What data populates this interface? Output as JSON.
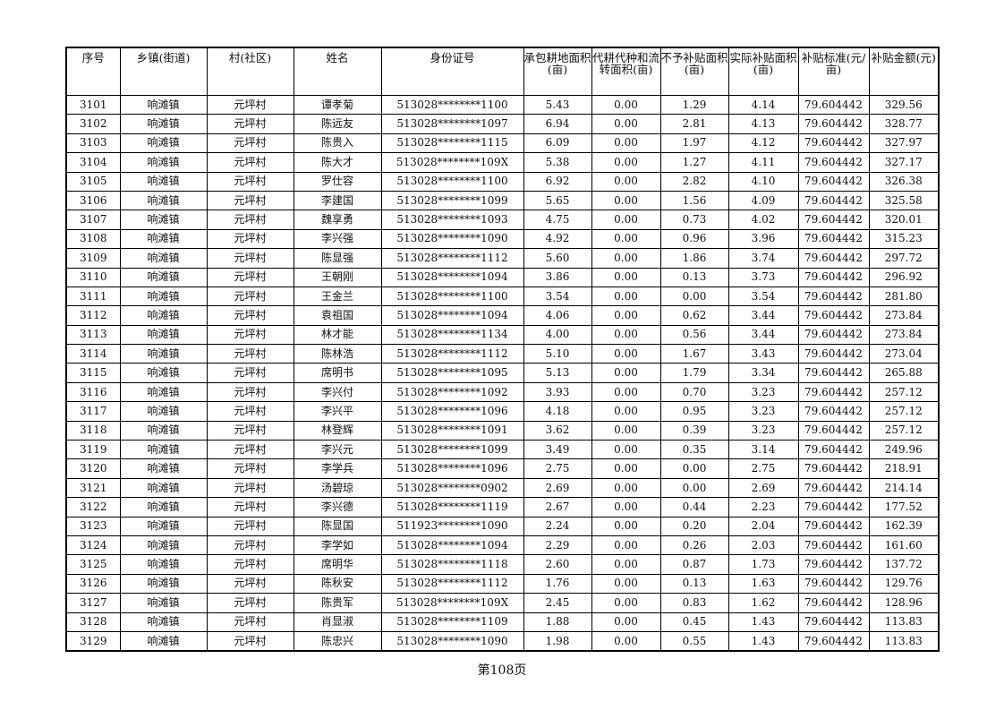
{
  "table": {
    "headers": [
      "序号",
      "乡镇(街道)",
      "村(社区)",
      "姓名",
      "身份证号",
      "承包耕地面积(亩)",
      "代耕代种和流转面积(亩)",
      "不予补贴面积(亩)",
      "实际补贴面积(亩)",
      "补贴标准(元/亩)",
      "补贴金额(元)"
    ],
    "rows": [
      [
        "3101",
        "响滩镇",
        "元坪村",
        "谭孝菊",
        "513028********1100",
        "5.43",
        "0.00",
        "1.29",
        "4.14",
        "79.604442",
        "329.56"
      ],
      [
        "3102",
        "响滩镇",
        "元坪村",
        "陈远友",
        "513028********1097",
        "6.94",
        "0.00",
        "2.81",
        "4.13",
        "79.604442",
        "328.77"
      ],
      [
        "3103",
        "响滩镇",
        "元坪村",
        "陈贵入",
        "513028********1115",
        "6.09",
        "0.00",
        "1.97",
        "4.12",
        "79.604442",
        "327.97"
      ],
      [
        "3104",
        "响滩镇",
        "元坪村",
        "陈大才",
        "513028********109X",
        "5.38",
        "0.00",
        "1.27",
        "4.11",
        "79.604442",
        "327.17"
      ],
      [
        "3105",
        "响滩镇",
        "元坪村",
        "罗仕容",
        "513028********1100",
        "6.92",
        "0.00",
        "2.82",
        "4.10",
        "79.604442",
        "326.38"
      ],
      [
        "3106",
        "响滩镇",
        "元坪村",
        "李建国",
        "513028********1099",
        "5.65",
        "0.00",
        "1.56",
        "4.09",
        "79.604442",
        "325.58"
      ],
      [
        "3107",
        "响滩镇",
        "元坪村",
        "魏享勇",
        "513028********1093",
        "4.75",
        "0.00",
        "0.73",
        "4.02",
        "79.604442",
        "320.01"
      ],
      [
        "3108",
        "响滩镇",
        "元坪村",
        "李兴强",
        "513028********1090",
        "4.92",
        "0.00",
        "0.96",
        "3.96",
        "79.604442",
        "315.23"
      ],
      [
        "3109",
        "响滩镇",
        "元坪村",
        "陈显强",
        "513028********1112",
        "5.60",
        "0.00",
        "1.86",
        "3.74",
        "79.604442",
        "297.72"
      ],
      [
        "3110",
        "响滩镇",
        "元坪村",
        "王朝刚",
        "513028********1094",
        "3.86",
        "0.00",
        "0.13",
        "3.73",
        "79.604442",
        "296.92"
      ],
      [
        "3111",
        "响滩镇",
        "元坪村",
        "王金兰",
        "513028********1100",
        "3.54",
        "0.00",
        "0.00",
        "3.54",
        "79.604442",
        "281.80"
      ],
      [
        "3112",
        "响滩镇",
        "元坪村",
        "袁祖国",
        "513028********1094",
        "4.06",
        "0.00",
        "0.62",
        "3.44",
        "79.604442",
        "273.84"
      ],
      [
        "3113",
        "响滩镇",
        "元坪村",
        "林才能",
        "513028********1134",
        "4.00",
        "0.00",
        "0.56",
        "3.44",
        "79.604442",
        "273.84"
      ],
      [
        "3114",
        "响滩镇",
        "元坪村",
        "陈林浩",
        "513028********1112",
        "5.10",
        "0.00",
        "1.67",
        "3.43",
        "79.604442",
        "273.04"
      ],
      [
        "3115",
        "响滩镇",
        "元坪村",
        "席明书",
        "513028********1095",
        "5.13",
        "0.00",
        "1.79",
        "3.34",
        "79.604442",
        "265.88"
      ],
      [
        "3116",
        "响滩镇",
        "元坪村",
        "李兴付",
        "513028********1092",
        "3.93",
        "0.00",
        "0.70",
        "3.23",
        "79.604442",
        "257.12"
      ],
      [
        "3117",
        "响滩镇",
        "元坪村",
        "李兴平",
        "513028********1096",
        "4.18",
        "0.00",
        "0.95",
        "3.23",
        "79.604442",
        "257.12"
      ],
      [
        "3118",
        "响滩镇",
        "元坪村",
        "林登辉",
        "513028********1091",
        "3.62",
        "0.00",
        "0.39",
        "3.23",
        "79.604442",
        "257.12"
      ],
      [
        "3119",
        "响滩镇",
        "元坪村",
        "李兴元",
        "513028********1099",
        "3.49",
        "0.00",
        "0.35",
        "3.14",
        "79.604442",
        "249.96"
      ],
      [
        "3120",
        "响滩镇",
        "元坪村",
        "李学兵",
        "513028********1096",
        "2.75",
        "0.00",
        "0.00",
        "2.75",
        "79.604442",
        "218.91"
      ],
      [
        "3121",
        "响滩镇",
        "元坪村",
        "汤碧琼",
        "513028********0902",
        "2.69",
        "0.00",
        "0.00",
        "2.69",
        "79.604442",
        "214.14"
      ],
      [
        "3122",
        "响滩镇",
        "元坪村",
        "李兴德",
        "513028********1119",
        "2.67",
        "0.00",
        "0.44",
        "2.23",
        "79.604442",
        "177.52"
      ],
      [
        "3123",
        "响滩镇",
        "元坪村",
        "陈显国",
        "511923********1090",
        "2.24",
        "0.00",
        "0.20",
        "2.04",
        "79.604442",
        "162.39"
      ],
      [
        "3124",
        "响滩镇",
        "元坪村",
        "李学如",
        "513028********1094",
        "2.29",
        "0.00",
        "0.26",
        "2.03",
        "79.604442",
        "161.60"
      ],
      [
        "3125",
        "响滩镇",
        "元坪村",
        "席明华",
        "513028********1118",
        "2.60",
        "0.00",
        "0.87",
        "1.73",
        "79.604442",
        "137.72"
      ],
      [
        "3126",
        "响滩镇",
        "元坪村",
        "陈秋安",
        "513028********1112",
        "1.76",
        "0.00",
        "0.13",
        "1.63",
        "79.604442",
        "129.76"
      ],
      [
        "3127",
        "响滩镇",
        "元坪村",
        "陈贵军",
        "513028********109X",
        "2.45",
        "0.00",
        "0.83",
        "1.62",
        "79.604442",
        "128.96"
      ],
      [
        "3128",
        "响滩镇",
        "元坪村",
        "肖显淑",
        "513028********1109",
        "1.88",
        "0.00",
        "0.45",
        "1.43",
        "79.604442",
        "113.83"
      ],
      [
        "3129",
        "响滩镇",
        "元坪村",
        "陈忠兴",
        "513028********1090",
        "1.98",
        "0.00",
        "0.55",
        "1.43",
        "79.604442",
        "113.83"
      ]
    ]
  },
  "footer": {
    "page_label": "第108页"
  }
}
